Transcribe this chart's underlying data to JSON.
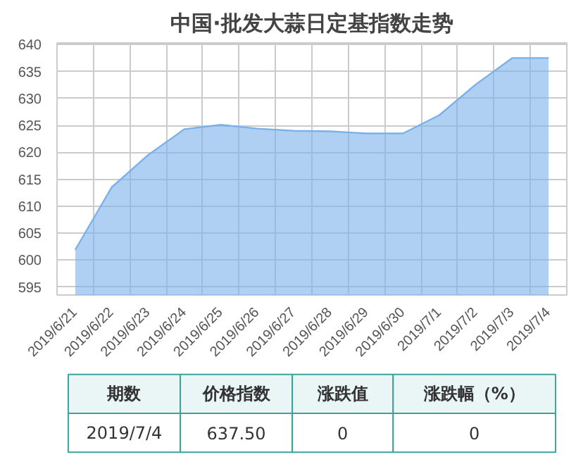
{
  "chart_data": {
    "type": "area",
    "title": "中国·批发大蒜日定基指数走势",
    "categories": [
      "2019/6/21",
      "2019/6/22",
      "2019/6/23",
      "2019/6/24",
      "2019/6/25",
      "2019/6/26",
      "2019/6/27",
      "2019/6/28",
      "2019/6/29",
      "2019/6/30",
      "2019/7/1",
      "2019/7/2",
      "2019/7/3",
      "2019/7/4"
    ],
    "series": [
      {
        "color": "#7ab1ea",
        "values": [
          601.9,
          613.5,
          619.5,
          624.3,
          625.1,
          624.4,
          624.0,
          623.9,
          623.5,
          623.5,
          626.9,
          632.6,
          637.5,
          637.5
        ]
      }
    ],
    "ylim": [
      593.5,
      640.3
    ],
    "yticks": [
      595,
      600,
      605,
      610,
      615,
      620,
      625,
      630,
      635,
      640
    ],
    "grid": true,
    "annotations": [
      "期数",
      "价格指数",
      "涨跌值",
      "涨跌幅（%）",
      "2019/7/4",
      "637.50",
      "0",
      "0"
    ]
  }
}
